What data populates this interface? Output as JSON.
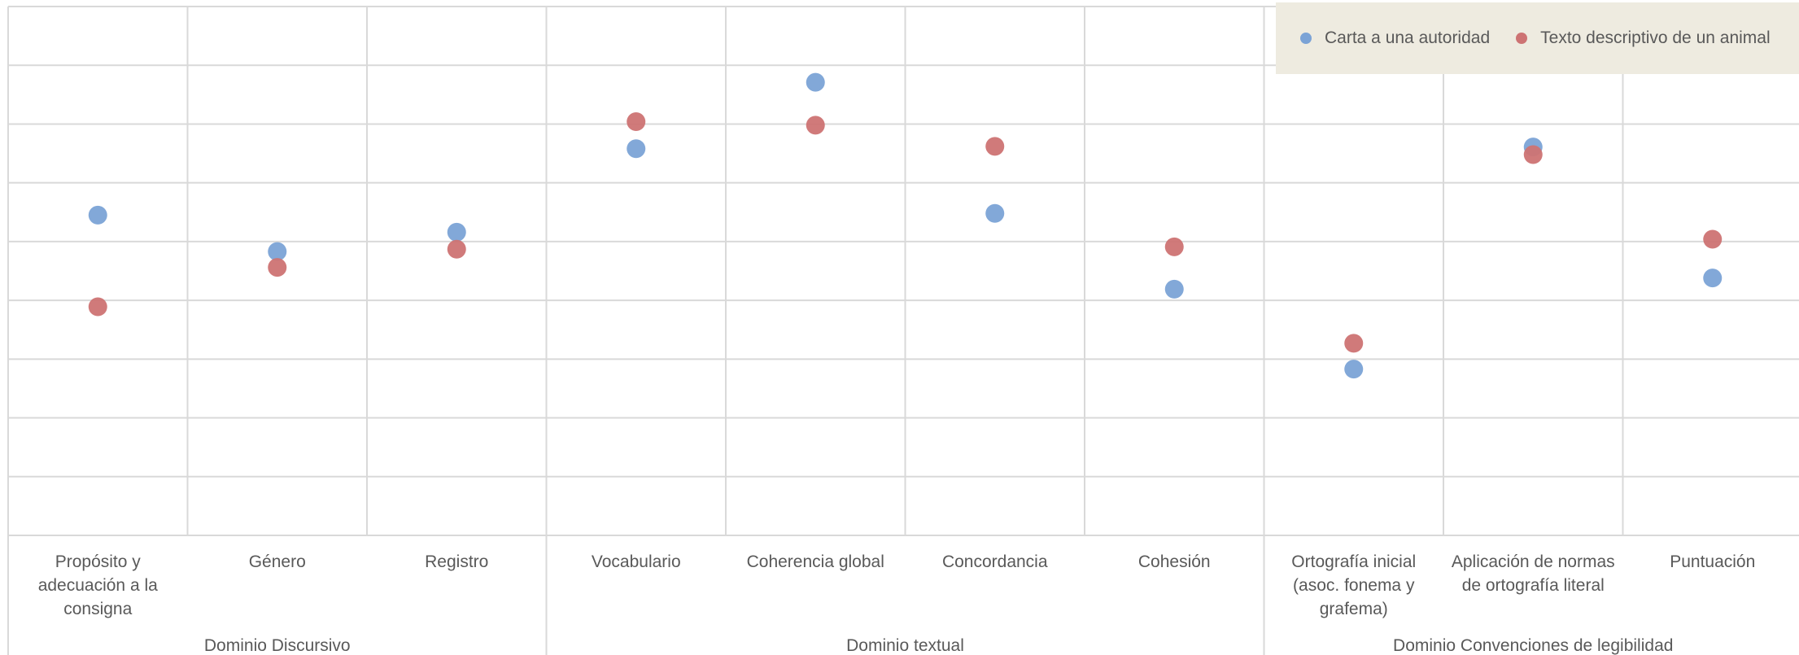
{
  "colors": {
    "carta": "#7BA3D6",
    "texto": "#CD7373",
    "grid": "#D9D9D9",
    "legend_bg": "#EEEBE0",
    "text": "#595959"
  },
  "chart_data": {
    "type": "scatter",
    "categories": [
      "Propósito y adecuación a la consigna",
      "Género",
      "Registro",
      "Vocabulario",
      "Coherencia global",
      "Concordancia",
      "Cohesión",
      "Ortografía inicial (asoc. fonema y grafema)",
      "Aplicación de normas de ortografía literal",
      "Puntuación"
    ],
    "groups": [
      {
        "label": "Dominio Discursivo",
        "categories": [
          "Propósito y adecuación a la consigna",
          "Género",
          "Registro"
        ]
      },
      {
        "label": "Dominio textual",
        "categories": [
          "Vocabulario",
          "Coherencia global",
          "Concordancia",
          "Cohesión"
        ]
      },
      {
        "label": "Dominio Convenciones de legibilidad",
        "categories": [
          "Ortografía inicial (asoc. fonema y grafema)",
          "Aplicación de normas de ortografía literal",
          "Puntuación"
        ]
      }
    ],
    "series": [
      {
        "name": "Carta a una autoridad",
        "color": "#7BA3D6",
        "values": [
          0.545,
          0.483,
          0.516,
          0.658,
          0.771,
          0.548,
          0.419,
          0.283,
          0.661,
          0.438
        ]
      },
      {
        "name": "Texto descriptivo de un animal",
        "color": "#CD7373",
        "values": [
          0.389,
          0.456,
          0.487,
          0.704,
          0.698,
          0.662,
          0.491,
          0.327,
          0.648,
          0.504
        ]
      }
    ],
    "ylim": [
      0,
      0.9
    ],
    "y_gridlines": 9,
    "grid": true,
    "legend_position": "top-right"
  }
}
